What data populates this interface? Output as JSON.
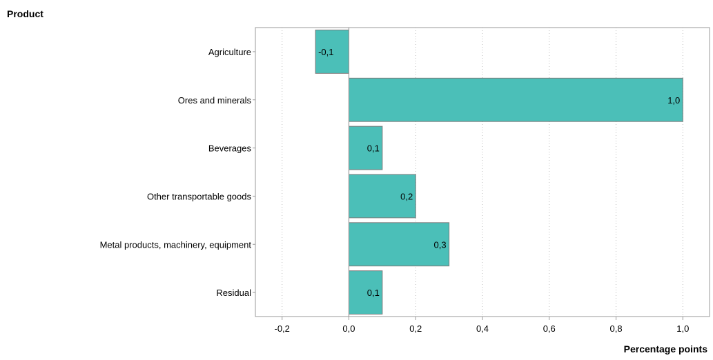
{
  "chart_data": {
    "type": "bar",
    "orientation": "horizontal",
    "ylabel": "Product",
    "xlabel": "Percentage points",
    "categories": [
      "Agriculture",
      "Ores and minerals",
      "Beverages",
      "Other transportable goods",
      "Metal products, machinery, equipment",
      "Residual"
    ],
    "values": [
      -0.1,
      1.0,
      0.1,
      0.2,
      0.3,
      0.1
    ],
    "data_labels": [
      "-0,1",
      "1,0",
      "0,1",
      "0,2",
      "0,3",
      "0,1"
    ],
    "xlim": [
      -0.28,
      1.08
    ],
    "xticks": [
      -0.2,
      0.0,
      0.2,
      0.4,
      0.6,
      0.8,
      1.0
    ],
    "xtick_labels": [
      "-0,2",
      "0,0",
      "0,2",
      "0,4",
      "0,6",
      "0,8",
      "1,0"
    ],
    "grid": "vertical dotted",
    "legend": "none",
    "colors": {
      "bar": "#4bbfb8",
      "bar_border": "#7a7a7a",
      "axis": "#999999",
      "grid": "#bbbbbb"
    }
  }
}
